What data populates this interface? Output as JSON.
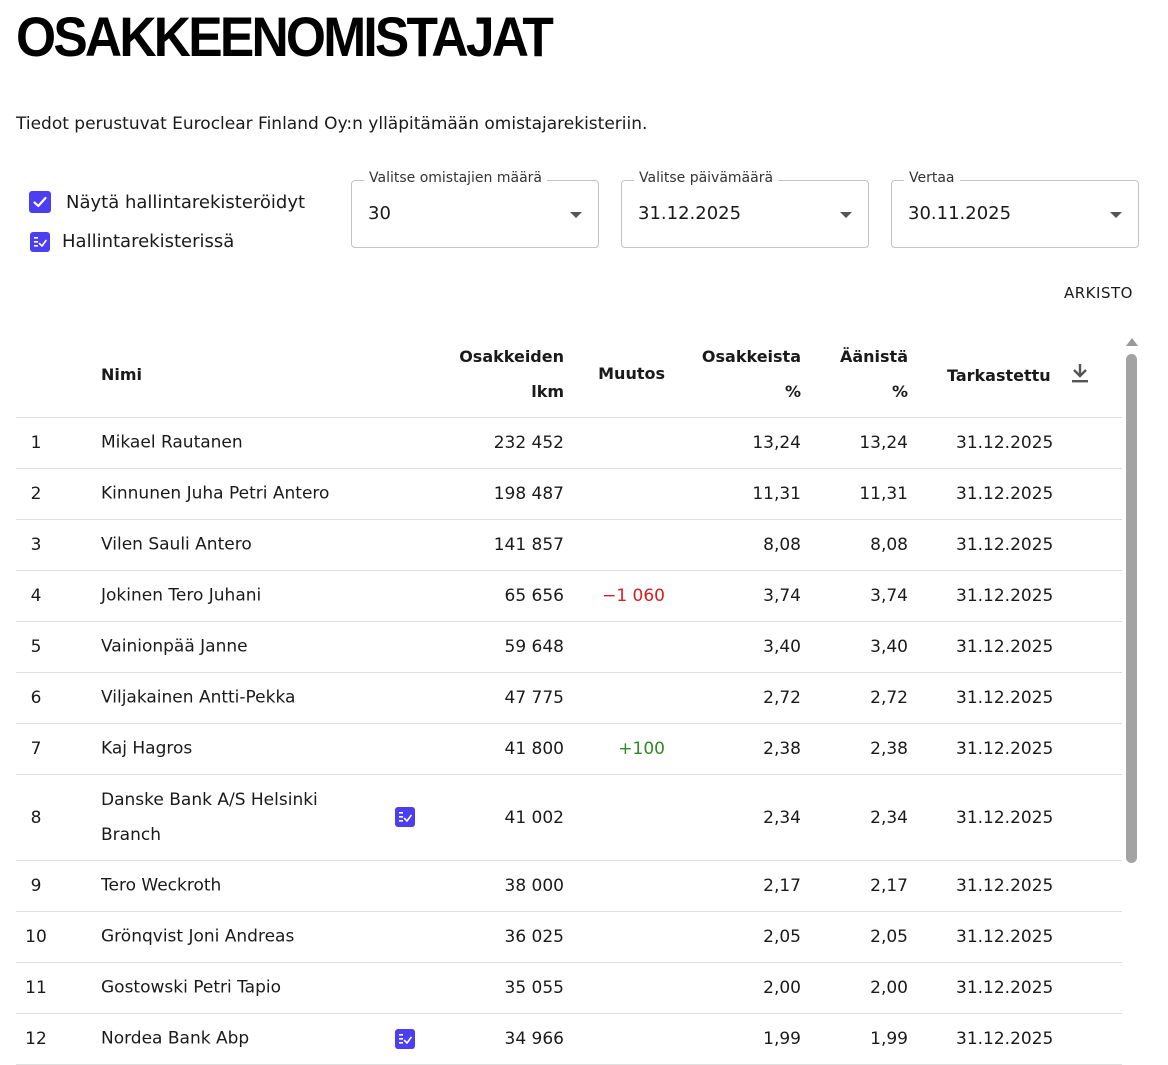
{
  "page": {
    "title": "OSAKKEENOMISTAJAT",
    "subtitle": "Tiedot perustuvat Euroclear Finland Oy:n ylläpitämään omistajarekisteriin."
  },
  "filters": {
    "show_nominee_label": "Näytä hallintarekisteröidyt",
    "show_nominee_checked": true,
    "nominee_legend_label": "Hallintarekisterissä",
    "owner_count": {
      "label": "Valitse omistajien määrä",
      "value": "30"
    },
    "date": {
      "label": "Valitse päivämäärä",
      "value": "31.12.2025"
    },
    "compare": {
      "label": "Vertaa",
      "value": "30.11.2025"
    }
  },
  "archive_label": "ARKISTO",
  "table": {
    "headers": {
      "name": "Nimi",
      "shares_line1": "Osakkeiden",
      "shares_line2": "lkm",
      "change": "Muutos",
      "share_pct_line1": "Osakkeista",
      "share_pct_line2": "%",
      "vote_pct_line1": "Äänistä",
      "vote_pct_line2": "%",
      "checked": "Tarkastettu"
    },
    "rows": [
      {
        "idx": "1",
        "name": "Mikael Rautanen",
        "nominee": false,
        "shares": "232 452",
        "change": "",
        "change_type": "",
        "share_pct": "13,24",
        "vote_pct": "13,24",
        "checked": "31.12.2025"
      },
      {
        "idx": "2",
        "name": "Kinnunen Juha Petri Antero",
        "nominee": false,
        "shares": "198 487",
        "change": "",
        "change_type": "",
        "share_pct": "11,31",
        "vote_pct": "11,31",
        "checked": "31.12.2025"
      },
      {
        "idx": "3",
        "name": "Vilen Sauli Antero",
        "nominee": false,
        "shares": "141 857",
        "change": "",
        "change_type": "",
        "share_pct": "8,08",
        "vote_pct": "8,08",
        "checked": "31.12.2025"
      },
      {
        "idx": "4",
        "name": "Jokinen Tero Juhani",
        "nominee": false,
        "shares": "65 656",
        "change": "−1 060",
        "change_type": "neg",
        "share_pct": "3,74",
        "vote_pct": "3,74",
        "checked": "31.12.2025"
      },
      {
        "idx": "5",
        "name": "Vainionpää Janne",
        "nominee": false,
        "shares": "59 648",
        "change": "",
        "change_type": "",
        "share_pct": "3,40",
        "vote_pct": "3,40",
        "checked": "31.12.2025"
      },
      {
        "idx": "6",
        "name": "Viljakainen Antti-Pekka",
        "nominee": false,
        "shares": "47 775",
        "change": "",
        "change_type": "",
        "share_pct": "2,72",
        "vote_pct": "2,72",
        "checked": "31.12.2025"
      },
      {
        "idx": "7",
        "name": "Kaj Hagros",
        "nominee": false,
        "shares": "41 800",
        "change": "+100",
        "change_type": "pos",
        "share_pct": "2,38",
        "vote_pct": "2,38",
        "checked": "31.12.2025"
      },
      {
        "idx": "8",
        "name": "Danske Bank A/S Helsinki Branch",
        "nominee": true,
        "shares": "41 002",
        "change": "",
        "change_type": "",
        "share_pct": "2,34",
        "vote_pct": "2,34",
        "checked": "31.12.2025"
      },
      {
        "idx": "9",
        "name": "Tero Weckroth",
        "nominee": false,
        "shares": "38 000",
        "change": "",
        "change_type": "",
        "share_pct": "2,17",
        "vote_pct": "2,17",
        "checked": "31.12.2025"
      },
      {
        "idx": "10",
        "name": "Grönqvist Joni Andreas",
        "nominee": false,
        "shares": "36 025",
        "change": "",
        "change_type": "",
        "share_pct": "2,05",
        "vote_pct": "2,05",
        "checked": "31.12.2025"
      },
      {
        "idx": "11",
        "name": "Gostowski Petri Tapio",
        "nominee": false,
        "shares": "35 055",
        "change": "",
        "change_type": "",
        "share_pct": "2,00",
        "vote_pct": "2,00",
        "checked": "31.12.2025"
      },
      {
        "idx": "12",
        "name": "Nordea Bank Abp",
        "nominee": true,
        "shares": "34 966",
        "change": "",
        "change_type": "",
        "share_pct": "1,99",
        "vote_pct": "1,99",
        "checked": "31.12.2025"
      }
    ]
  },
  "colors": {
    "accent": "#4b3ff0",
    "negative": "#d81e1e",
    "positive": "#2e8b1e"
  },
  "icons": {
    "checkbox": "checkbox-checked-icon",
    "nominee": "list-check-icon",
    "download": "download-icon",
    "dropdown": "caret-down-icon"
  }
}
